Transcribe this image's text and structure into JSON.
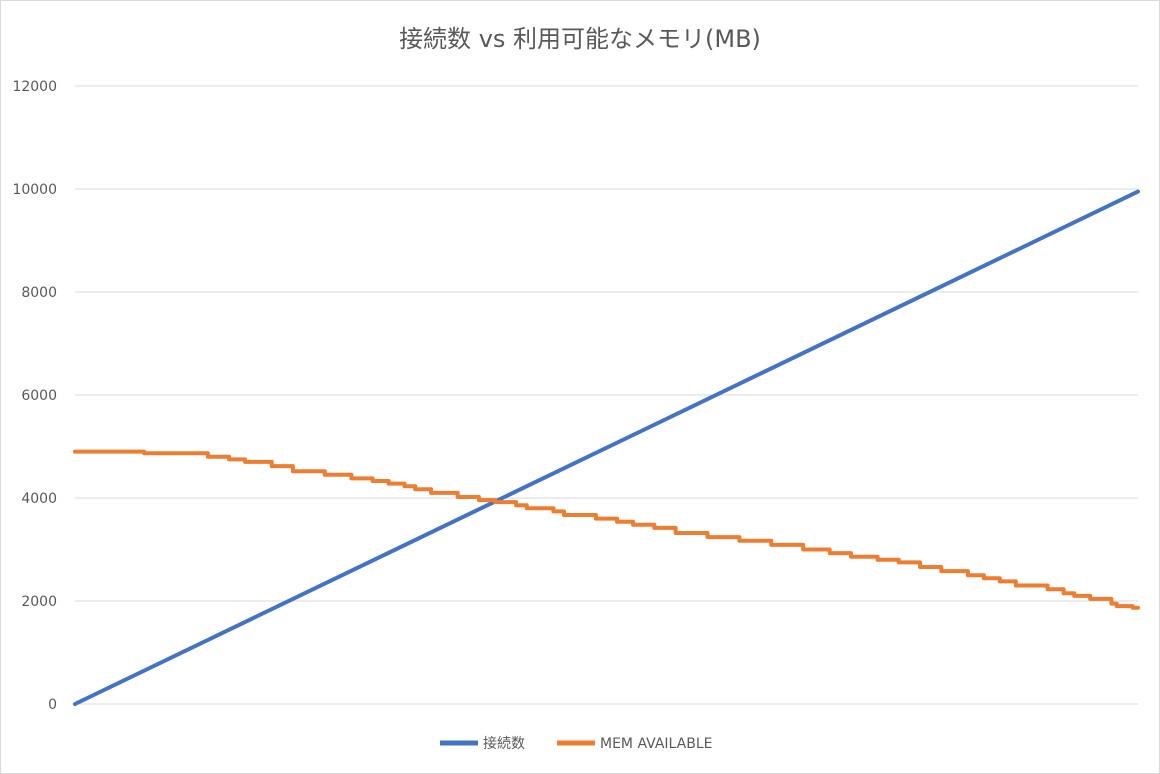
{
  "chart_data": {
    "type": "line",
    "title": "接続数 vs 利用可能なメモリ(MB)",
    "xlabel": "",
    "ylabel": "",
    "ylim": [
      0,
      12000
    ],
    "y_ticks": [
      0,
      2000,
      4000,
      6000,
      8000,
      10000,
      12000
    ],
    "grid": true,
    "legend": "bottom",
    "x": [
      0,
      10000
    ],
    "series": [
      {
        "name": "接続数",
        "color": "#4472C4",
        "style": "linear",
        "points": [
          [
            0,
            0
          ],
          [
            10000,
            9950
          ]
        ]
      },
      {
        "name": "MEM AVAILABLE",
        "color": "#ED7D31",
        "style": "step",
        "points": [
          [
            0,
            4900
          ],
          [
            650,
            4900
          ],
          [
            650,
            4870
          ],
          [
            1250,
            4870
          ],
          [
            1250,
            4800
          ],
          [
            1450,
            4800
          ],
          [
            1450,
            4750
          ],
          [
            1600,
            4750
          ],
          [
            1600,
            4700
          ],
          [
            1850,
            4700
          ],
          [
            1850,
            4620
          ],
          [
            2050,
            4620
          ],
          [
            2050,
            4520
          ],
          [
            2350,
            4520
          ],
          [
            2350,
            4450
          ],
          [
            2600,
            4450
          ],
          [
            2600,
            4380
          ],
          [
            2800,
            4380
          ],
          [
            2800,
            4330
          ],
          [
            2950,
            4330
          ],
          [
            2950,
            4280
          ],
          [
            3100,
            4280
          ],
          [
            3100,
            4230
          ],
          [
            3200,
            4230
          ],
          [
            3200,
            4170
          ],
          [
            3350,
            4170
          ],
          [
            3350,
            4100
          ],
          [
            3600,
            4100
          ],
          [
            3600,
            4020
          ],
          [
            3800,
            4020
          ],
          [
            3800,
            3960
          ],
          [
            3950,
            3960
          ],
          [
            3950,
            3920
          ],
          [
            4150,
            3920
          ],
          [
            4150,
            3860
          ],
          [
            4250,
            3860
          ],
          [
            4250,
            3800
          ],
          [
            4500,
            3800
          ],
          [
            4500,
            3740
          ],
          [
            4600,
            3740
          ],
          [
            4600,
            3670
          ],
          [
            4900,
            3670
          ],
          [
            4900,
            3600
          ],
          [
            5100,
            3600
          ],
          [
            5100,
            3540
          ],
          [
            5250,
            3540
          ],
          [
            5250,
            3480
          ],
          [
            5450,
            3480
          ],
          [
            5450,
            3420
          ],
          [
            5650,
            3420
          ],
          [
            5650,
            3320
          ],
          [
            5950,
            3320
          ],
          [
            5950,
            3240
          ],
          [
            6250,
            3240
          ],
          [
            6250,
            3170
          ],
          [
            6550,
            3170
          ],
          [
            6550,
            3090
          ],
          [
            6850,
            3090
          ],
          [
            6850,
            3000
          ],
          [
            7100,
            3000
          ],
          [
            7100,
            2930
          ],
          [
            7300,
            2930
          ],
          [
            7300,
            2860
          ],
          [
            7550,
            2860
          ],
          [
            7550,
            2800
          ],
          [
            7750,
            2800
          ],
          [
            7750,
            2750
          ],
          [
            7950,
            2750
          ],
          [
            7950,
            2660
          ],
          [
            8150,
            2660
          ],
          [
            8150,
            2580
          ],
          [
            8400,
            2580
          ],
          [
            8400,
            2500
          ],
          [
            8550,
            2500
          ],
          [
            8550,
            2440
          ],
          [
            8700,
            2440
          ],
          [
            8700,
            2380
          ],
          [
            8850,
            2380
          ],
          [
            8850,
            2300
          ],
          [
            9150,
            2300
          ],
          [
            9150,
            2230
          ],
          [
            9300,
            2230
          ],
          [
            9300,
            2150
          ],
          [
            9400,
            2150
          ],
          [
            9400,
            2100
          ],
          [
            9550,
            2100
          ],
          [
            9550,
            2040
          ],
          [
            9750,
            2040
          ],
          [
            9750,
            1950
          ],
          [
            9800,
            1950
          ],
          [
            9800,
            1900
          ],
          [
            9950,
            1900
          ],
          [
            9950,
            1870
          ],
          [
            10000,
            1870
          ]
        ]
      }
    ]
  }
}
